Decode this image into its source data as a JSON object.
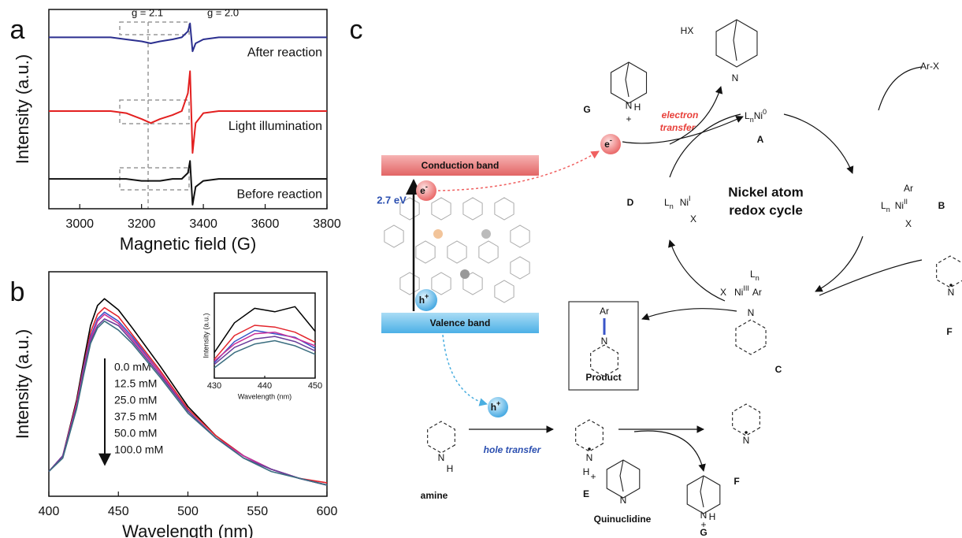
{
  "chart_data": [
    {
      "type": "line",
      "panel_label": "a",
      "xlabel": "Magnetic field (G)",
      "ylabel": "Intensity (a.u.)",
      "x": [
        2900,
        2950,
        3000,
        3050,
        3100,
        3150,
        3200,
        3230,
        3260,
        3300,
        3330,
        3350,
        3357,
        3365,
        3375,
        3400,
        3450,
        3500,
        3600,
        3700,
        3800
      ],
      "xlim": [
        2900,
        3800
      ],
      "xticks": [
        3000,
        3200,
        3400,
        3600,
        3800
      ],
      "ylim": [
        0,
        10
      ],
      "annotations": [
        "g = 2.1",
        "g = 2.0"
      ],
      "series": [
        {
          "name": "After reaction",
          "color": "#2b2f8f",
          "values": [
            8.6,
            8.6,
            8.6,
            8.6,
            8.6,
            8.5,
            8.4,
            8.3,
            8.4,
            8.5,
            8.6,
            8.9,
            9.3,
            7.9,
            8.3,
            8.5,
            8.6,
            8.6,
            8.6,
            8.6,
            8.6
          ]
        },
        {
          "name": "Light illumination",
          "color": "#e32020",
          "values": [
            4.9,
            4.9,
            4.9,
            4.9,
            4.9,
            4.8,
            4.5,
            4.3,
            4.5,
            4.7,
            4.9,
            5.8,
            6.9,
            2.8,
            4.3,
            4.8,
            4.9,
            4.9,
            4.9,
            4.9,
            4.9
          ]
        },
        {
          "name": "Before reaction",
          "color": "#111111",
          "values": [
            1.5,
            1.5,
            1.5,
            1.5,
            1.5,
            1.5,
            1.4,
            1.4,
            1.4,
            1.5,
            1.5,
            1.8,
            2.4,
            0.2,
            1.1,
            1.4,
            1.5,
            1.5,
            1.5,
            1.5,
            1.5
          ]
        }
      ]
    },
    {
      "type": "line",
      "panel_label": "b",
      "xlabel": "Wavelength (nm)",
      "ylabel": "Intensity (a.u.)",
      "x": [
        400,
        410,
        420,
        425,
        430,
        435,
        440,
        450,
        460,
        480,
        500,
        520,
        540,
        560,
        580,
        600
      ],
      "xlim": [
        400,
        600
      ],
      "xticks": [
        400,
        450,
        500,
        550,
        600
      ],
      "ylim": [
        0,
        10
      ],
      "series": [
        {
          "name": "0.0 mM",
          "color": "#000000",
          "values": [
            1.1,
            1.8,
            4.3,
            6.0,
            7.6,
            8.5,
            8.8,
            8.3,
            7.5,
            5.8,
            4.0,
            2.7,
            1.8,
            1.2,
            0.8,
            0.5
          ]
        },
        {
          "name": "12.5 mM",
          "color": "#e3242b",
          "values": [
            1.1,
            1.8,
            4.2,
            5.8,
            7.3,
            8.1,
            8.4,
            8.0,
            7.2,
            5.6,
            3.9,
            2.7,
            1.8,
            1.2,
            0.8,
            0.6
          ]
        },
        {
          "name": "25.0 mM",
          "color": "#3a55c8",
          "values": [
            1.1,
            1.8,
            4.1,
            5.7,
            7.1,
            7.9,
            8.2,
            7.8,
            7.1,
            5.5,
            3.8,
            2.6,
            1.8,
            1.2,
            0.8,
            0.5
          ]
        },
        {
          "name": "37.5 mM",
          "color": "#c8309a",
          "values": [
            1.1,
            1.8,
            4.1,
            5.6,
            7.0,
            7.8,
            8.1,
            7.7,
            7.0,
            5.5,
            3.8,
            2.6,
            1.8,
            1.2,
            0.8,
            0.5
          ]
        },
        {
          "name": "50.0 mM",
          "color": "#6a3d9a",
          "values": [
            1.1,
            1.8,
            4.0,
            5.5,
            6.9,
            7.6,
            7.9,
            7.6,
            6.9,
            5.4,
            3.8,
            2.6,
            1.7,
            1.2,
            0.8,
            0.5
          ]
        },
        {
          "name": "100.0 mM",
          "color": "#3b6e80",
          "values": [
            1.1,
            1.7,
            3.9,
            5.4,
            6.8,
            7.5,
            7.8,
            7.4,
            6.8,
            5.3,
            3.7,
            2.6,
            1.7,
            1.1,
            0.8,
            0.5
          ]
        }
      ]
    },
    {
      "type": "line",
      "xlabel": "Wavelength (nm)",
      "ylabel": "Intensity (a.u.)",
      "x": [
        430,
        434,
        438,
        442,
        446,
        450
      ],
      "xlim": [
        430,
        450
      ],
      "xticks": [
        430,
        440,
        450
      ],
      "ylim": [
        0,
        10
      ],
      "series": [
        {
          "color": "#000000",
          "values": [
            3.0,
            6.5,
            8.2,
            7.8,
            8.4,
            5.5
          ]
        },
        {
          "color": "#e3242b",
          "values": [
            2.2,
            5.0,
            6.2,
            6.0,
            5.4,
            4.2
          ]
        },
        {
          "color": "#3a55c8",
          "values": [
            1.8,
            4.3,
            5.6,
            5.2,
            4.8,
            3.5
          ]
        },
        {
          "color": "#c8309a",
          "values": [
            2.0,
            4.0,
            5.2,
            5.4,
            4.7,
            3.8
          ]
        },
        {
          "color": "#6a3d9a",
          "values": [
            1.6,
            3.6,
            4.6,
            4.9,
            4.3,
            3.2
          ]
        },
        {
          "color": "#3b6e80",
          "values": [
            1.2,
            3.0,
            4.0,
            4.4,
            3.8,
            2.8
          ]
        }
      ]
    }
  ],
  "diagram": {
    "panel_label": "c",
    "band_diagram": {
      "conduction_band": "Conduction band",
      "valence_band": "Valence band",
      "band_gap": "2.7 eV",
      "electron": [
        "e",
        "-"
      ],
      "hole": [
        "h",
        "+"
      ]
    },
    "electron_transfer": {
      "label": [
        "electron",
        "transfer"
      ],
      "carrier": [
        "e",
        "-"
      ]
    },
    "hole_transfer": {
      "label": "hole transfer",
      "carrier": [
        "h",
        "+"
      ]
    },
    "cycle_title": [
      "Nickel atom",
      "redox cycle"
    ],
    "species": {
      "A": {
        "id": "A",
        "formula": [
          "L",
          "n",
          "Ni",
          "0"
        ]
      },
      "B": {
        "id": "B",
        "ar": "Ar",
        "formula": [
          "L",
          "n",
          "Ni",
          "II"
        ],
        "x": "X"
      },
      "C": {
        "id": "C",
        "ln": [
          "L",
          "n"
        ],
        "formula": [
          "X",
          "Ni",
          "III",
          "Ar"
        ],
        "n": "N"
      },
      "D": {
        "id": "D",
        "formula": [
          "L",
          "n",
          "Ni",
          "I"
        ],
        "x": "X"
      },
      "F_cycle": {
        "id": "F",
        "n": "N"
      },
      "G_top": {
        "id": "G",
        "n": "N",
        "h": "H",
        "charge": "+"
      },
      "HX": {
        "label": "HX",
        "n": "N"
      },
      "ArX": "Ar-X",
      "product": {
        "title": "Product",
        "ar": "Ar",
        "n": "N"
      },
      "amine": {
        "name": "amine",
        "n": "N",
        "h": "H"
      },
      "E": {
        "id": "E",
        "n": "N",
        "h": "H",
        "charge": "+"
      },
      "F_bottom": {
        "id": "F",
        "n": "N"
      },
      "quinuclidine": {
        "name": "Quinuclidine",
        "n": "N"
      },
      "G_bottom": {
        "id": "G",
        "n": "N",
        "h": "H",
        "charge": "+"
      }
    }
  }
}
